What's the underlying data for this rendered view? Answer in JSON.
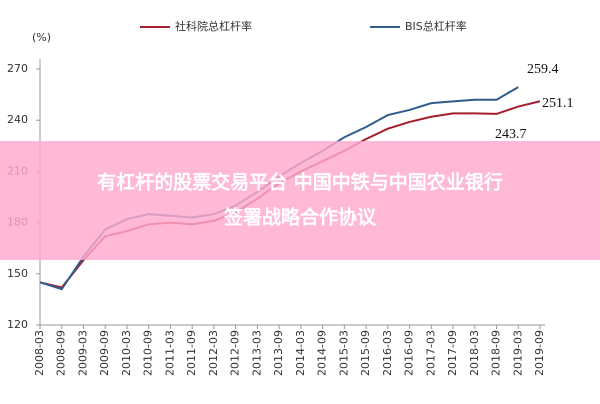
{
  "chart_data": {
    "type": "line",
    "y_label": "(%)",
    "categories": [
      "2008-03",
      "2008-09",
      "2009-03",
      "2009-09",
      "2010-03",
      "2010-09",
      "2011-03",
      "2011-09",
      "2012-03",
      "2012-09",
      "2013-03",
      "2013-09",
      "2014-03",
      "2014-09",
      "2015-03",
      "2015-09",
      "2016-03",
      "2016-09",
      "2017-03",
      "2017-09",
      "2018-03",
      "2018-09",
      "2019-03",
      "2019-09"
    ],
    "series": [
      {
        "name": "社科院总杠杆率",
        "color": "#a31f2c",
        "values": [
          145,
          142,
          158,
          172,
          175,
          179,
          180,
          179,
          181,
          186,
          194,
          203,
          210,
          216,
          222,
          229,
          235,
          239,
          242,
          244,
          244,
          243.7,
          248,
          251.1
        ]
      },
      {
        "name": "BIS总杠杆率",
        "color": "#2e5d8e",
        "values": [
          145,
          141,
          160,
          176,
          182,
          185,
          184,
          183,
          185,
          190,
          198,
          207,
          215,
          222,
          230,
          236,
          243,
          246,
          250,
          251,
          252,
          252,
          259.4,
          null
        ]
      }
    ],
    "annotations": [
      "259.4",
      "251.1",
      "243.7"
    ],
    "ylim": [
      120,
      270
    ],
    "yticks": [
      120,
      150,
      180,
      210,
      240,
      270
    ],
    "grid": false
  },
  "overlay": {
    "lines": [
      "有杠杆的股票交易平台 中国中铁与中国农业银行",
      "签署战略合作协议"
    ]
  }
}
